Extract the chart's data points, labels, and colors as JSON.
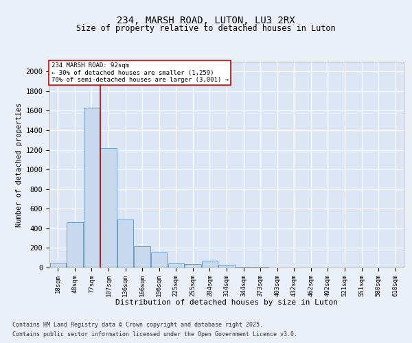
{
  "title1": "234, MARSH ROAD, LUTON, LU3 2RX",
  "title2": "Size of property relative to detached houses in Luton",
  "xlabel": "Distribution of detached houses by size in Luton",
  "ylabel": "Number of detached properties",
  "categories": [
    "18sqm",
    "48sqm",
    "77sqm",
    "107sqm",
    "136sqm",
    "166sqm",
    "196sqm",
    "225sqm",
    "255sqm",
    "284sqm",
    "314sqm",
    "344sqm",
    "373sqm",
    "403sqm",
    "432sqm",
    "462sqm",
    "492sqm",
    "521sqm",
    "551sqm",
    "580sqm",
    "610sqm"
  ],
  "values": [
    50,
    460,
    1630,
    1220,
    490,
    220,
    155,
    45,
    35,
    70,
    30,
    10,
    5,
    3,
    2,
    1,
    1,
    0,
    0,
    0,
    0
  ],
  "bar_color": "#c8d9ee",
  "bar_edge_color": "#6a9fc8",
  "vline_color": "#cc0000",
  "annotation_text": "234 MARSH ROAD: 92sqm\n← 30% of detached houses are smaller (1,259)\n70% of semi-detached houses are larger (3,001) →",
  "annotation_box_color": "#ffffff",
  "annotation_box_edge": "#cc0000",
  "ylim": [
    0,
    2100
  ],
  "yticks": [
    0,
    200,
    400,
    600,
    800,
    1000,
    1200,
    1400,
    1600,
    1800,
    2000
  ],
  "background_color": "#dce6f5",
  "plot_bg_color": "#dce6f5",
  "fig_bg_color": "#eaf0f8",
  "grid_color": "#ffffff",
  "footer1": "Contains HM Land Registry data © Crown copyright and database right 2025.",
  "footer2": "Contains public sector information licensed under the Open Government Licence v3.0."
}
